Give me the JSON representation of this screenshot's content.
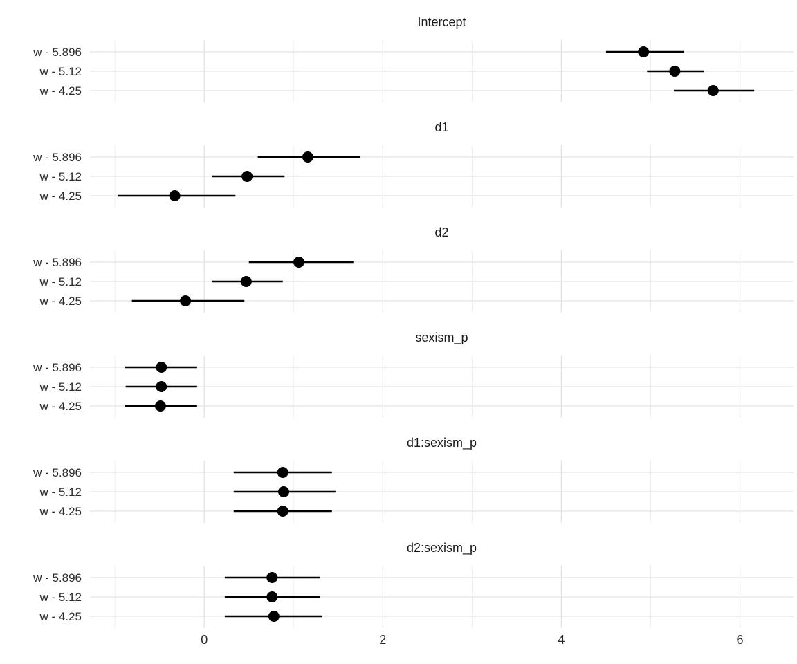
{
  "chart_data": {
    "type": "scatter",
    "subtype": "faceted-coefficient-forest-plot",
    "title": "",
    "xlabel": "",
    "ylabel": "",
    "xlim": [
      -1.28,
      6.6
    ],
    "grid": true,
    "legend": "none",
    "categories": [
      "w - 5.896",
      "w - 5.12",
      "w - 4.25"
    ],
    "x_axis": {
      "ticks": [
        {
          "value": 0,
          "label": "0"
        },
        {
          "value": 2,
          "label": "2"
        },
        {
          "value": 4,
          "label": "4"
        },
        {
          "value": 6,
          "label": "6"
        }
      ],
      "minor_gridlines": [
        -1,
        1,
        3,
        5
      ]
    },
    "panels": [
      {
        "title": "Intercept",
        "rows": [
          {
            "label": "w - 5.896",
            "estimate": 4.92,
            "lower": 4.5,
            "upper": 5.37
          },
          {
            "label": "w - 5.12",
            "estimate": 5.27,
            "lower": 4.96,
            "upper": 5.6
          },
          {
            "label": "w - 4.25",
            "estimate": 5.7,
            "lower": 5.26,
            "upper": 6.16
          }
        ]
      },
      {
        "title": "d1",
        "rows": [
          {
            "label": "w - 5.896",
            "estimate": 1.16,
            "lower": 0.6,
            "upper": 1.75
          },
          {
            "label": "w - 5.12",
            "estimate": 0.48,
            "lower": 0.09,
            "upper": 0.9
          },
          {
            "label": "w - 4.25",
            "estimate": -0.33,
            "lower": -0.97,
            "upper": 0.35
          }
        ]
      },
      {
        "title": "d2",
        "rows": [
          {
            "label": "w - 5.896",
            "estimate": 1.06,
            "lower": 0.5,
            "upper": 1.67
          },
          {
            "label": "w - 5.12",
            "estimate": 0.47,
            "lower": 0.09,
            "upper": 0.88
          },
          {
            "label": "w - 4.25",
            "estimate": -0.21,
            "lower": -0.81,
            "upper": 0.45
          }
        ]
      },
      {
        "title": "sexism_p",
        "rows": [
          {
            "label": "w - 5.896",
            "estimate": -0.48,
            "lower": -0.89,
            "upper": -0.08
          },
          {
            "label": "w - 5.12",
            "estimate": -0.48,
            "lower": -0.88,
            "upper": -0.08
          },
          {
            "label": "w - 4.25",
            "estimate": -0.49,
            "lower": -0.89,
            "upper": -0.08
          }
        ]
      },
      {
        "title": "d1:sexism_p",
        "rows": [
          {
            "label": "w - 5.896",
            "estimate": 0.88,
            "lower": 0.33,
            "upper": 1.43
          },
          {
            "label": "w - 5.12",
            "estimate": 0.89,
            "lower": 0.33,
            "upper": 1.47
          },
          {
            "label": "w - 4.25",
            "estimate": 0.88,
            "lower": 0.33,
            "upper": 1.43
          }
        ]
      },
      {
        "title": "d2:sexism_p",
        "rows": [
          {
            "label": "w - 5.896",
            "estimate": 0.76,
            "lower": 0.23,
            "upper": 1.3
          },
          {
            "label": "w - 5.12",
            "estimate": 0.76,
            "lower": 0.23,
            "upper": 1.3
          },
          {
            "label": "w - 4.25",
            "estimate": 0.78,
            "lower": 0.23,
            "upper": 1.32
          }
        ]
      }
    ],
    "colors": {
      "point": "#000000",
      "errorbar": "#000000",
      "gridline_major": "#e3e3e3",
      "gridline_minor": "#eeeeee",
      "axis_text": "#2b2b2b",
      "title_text": "#1a1a1a",
      "background": "#ffffff"
    }
  }
}
